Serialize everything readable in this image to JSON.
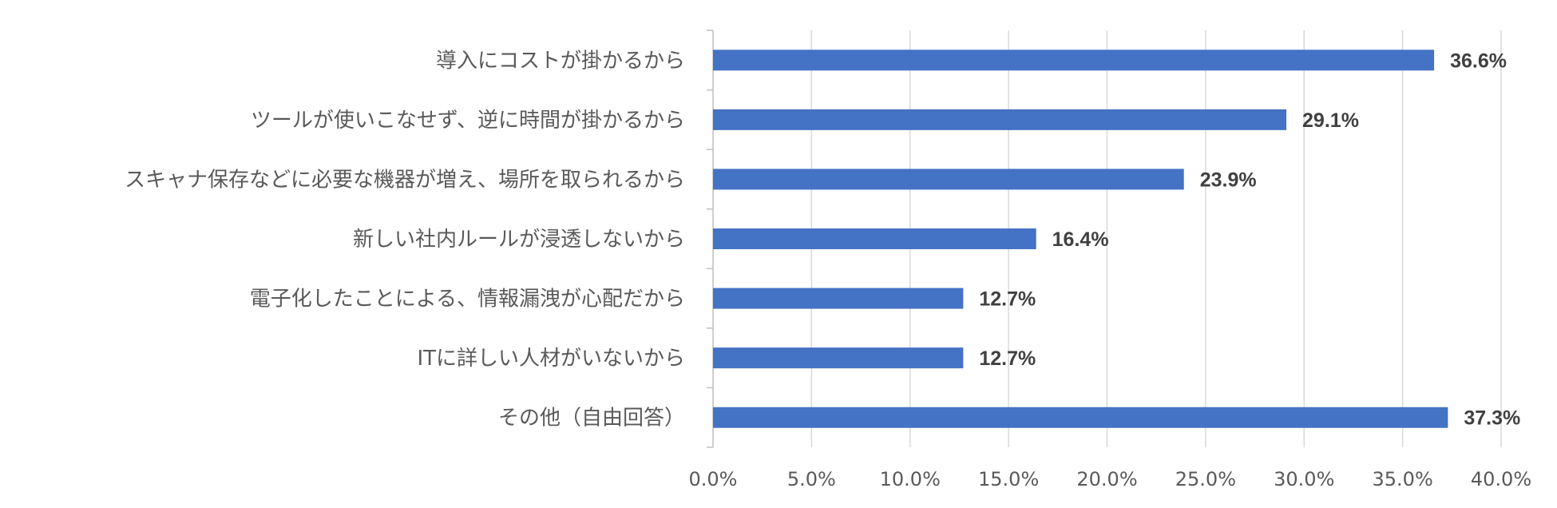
{
  "chart_data": {
    "type": "bar",
    "orientation": "horizontal",
    "categories": [
      "導入にコストが掛かるから",
      "ツールが使いこなせず、逆に時間が掛かるから",
      "スキャナ保存などに必要な機器が増え、場所を取られるから",
      "新しい社内ルールが浸透しないから",
      "電子化したことによる、情報漏洩が心配だから",
      "ITに詳しい人材がいないから",
      "その他（自由回答）"
    ],
    "values": [
      36.6,
      29.1,
      23.9,
      16.4,
      12.7,
      12.7,
      37.3
    ],
    "data_labels": [
      "36.6%",
      "29.1%",
      "23.9%",
      "16.4%",
      "12.7%",
      "12.7%",
      "37.3%"
    ],
    "x_ticks": [
      "0.0%",
      "5.0%",
      "10.0%",
      "15.0%",
      "20.0%",
      "25.0%",
      "30.0%",
      "35.0%",
      "40.0%"
    ],
    "xlim": [
      0,
      40
    ],
    "grid": true,
    "legend": "none",
    "bar_color": "#4472C4",
    "grid_color": "#D9D9D9",
    "axis_color": "#BFBFBF"
  }
}
